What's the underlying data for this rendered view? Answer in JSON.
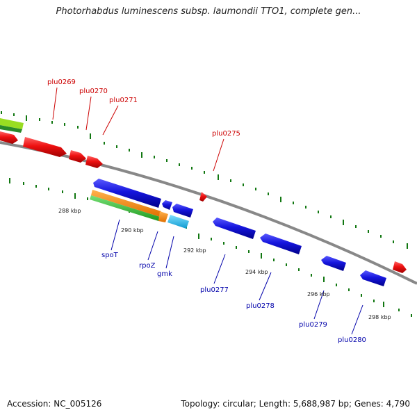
{
  "title": "Photorhabdus luminescens subsp. laumondii TTO1, complete gen...",
  "accession": "Accession: NC_005126",
  "summary": "Topology: circular; Length: 5,688,987 bp; Genes: 4,790",
  "colors": {
    "forward_gene": "#ee1111",
    "reverse_gene": "#1515dd",
    "backbone": "#888888",
    "ticks": "#117711",
    "orange": "#ff8c00",
    "green": "#33bb33",
    "cyan": "#22b8e8",
    "lime": "#99dd22"
  },
  "gene_labels_forward": [
    "plu0269",
    "plu0270",
    "plu0271",
    "plu0275"
  ],
  "gene_labels_reverse": [
    "spoT",
    "rpoZ",
    "gmk",
    "plu0277",
    "plu0278",
    "plu0279",
    "plu0280"
  ],
  "scale_ticks": [
    "288 kbp",
    "290 kbp",
    "292 kbp",
    "294 kbp",
    "296 kbp",
    "298 kbp"
  ]
}
